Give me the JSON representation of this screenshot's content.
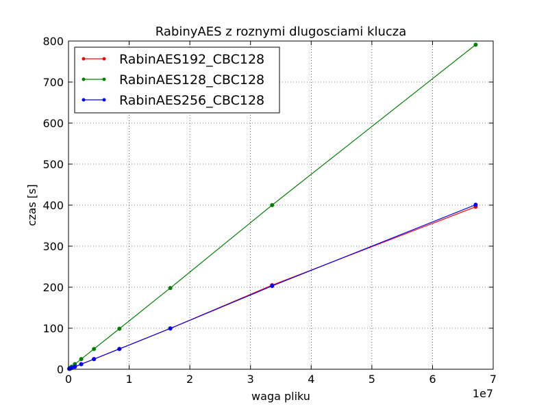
{
  "chart_data": {
    "type": "line",
    "title": "RabinyAES z roznymi dlugosciami klucza",
    "xlabel": "waga pliku",
    "ylabel": "czas [s]",
    "x_offset_label": "1e7",
    "xlim": [
      0,
      7
    ],
    "ylim": [
      0,
      800
    ],
    "x_ticks": [
      0,
      1,
      2,
      3,
      4,
      5,
      6,
      7
    ],
    "x_tick_labels": [
      "0",
      "1",
      "2",
      "3",
      "4",
      "5",
      "6",
      "7"
    ],
    "y_ticks": [
      0,
      100,
      200,
      300,
      400,
      500,
      600,
      700,
      800
    ],
    "y_tick_labels": [
      "0",
      "100",
      "200",
      "300",
      "400",
      "500",
      "600",
      "700",
      "800"
    ],
    "grid": true,
    "legend_position": "top-left",
    "x": [
      0.0131,
      0.0262,
      0.0524,
      0.1049,
      0.2097,
      0.4194,
      0.8389,
      1.6777,
      3.3554,
      6.7109
    ],
    "series": [
      {
        "name": "RabinAES192_CBC128",
        "color": "#ff0000",
        "values": [
          0.8,
          1.5,
          3.1,
          6.2,
          12.4,
          24.8,
          49.6,
          99.5,
          205,
          396
        ]
      },
      {
        "name": "RabinAES128_CBC128",
        "color": "#008000",
        "values": [
          1.6,
          3.1,
          6.2,
          12.4,
          24.7,
          49.4,
          98.8,
          198,
          400,
          791
        ]
      },
      {
        "name": "RabinAES256_CBC128",
        "color": "#0000ff",
        "values": [
          0.8,
          1.5,
          3.1,
          6.2,
          12.3,
          24.6,
          49.4,
          99.4,
          203,
          401
        ]
      }
    ]
  }
}
